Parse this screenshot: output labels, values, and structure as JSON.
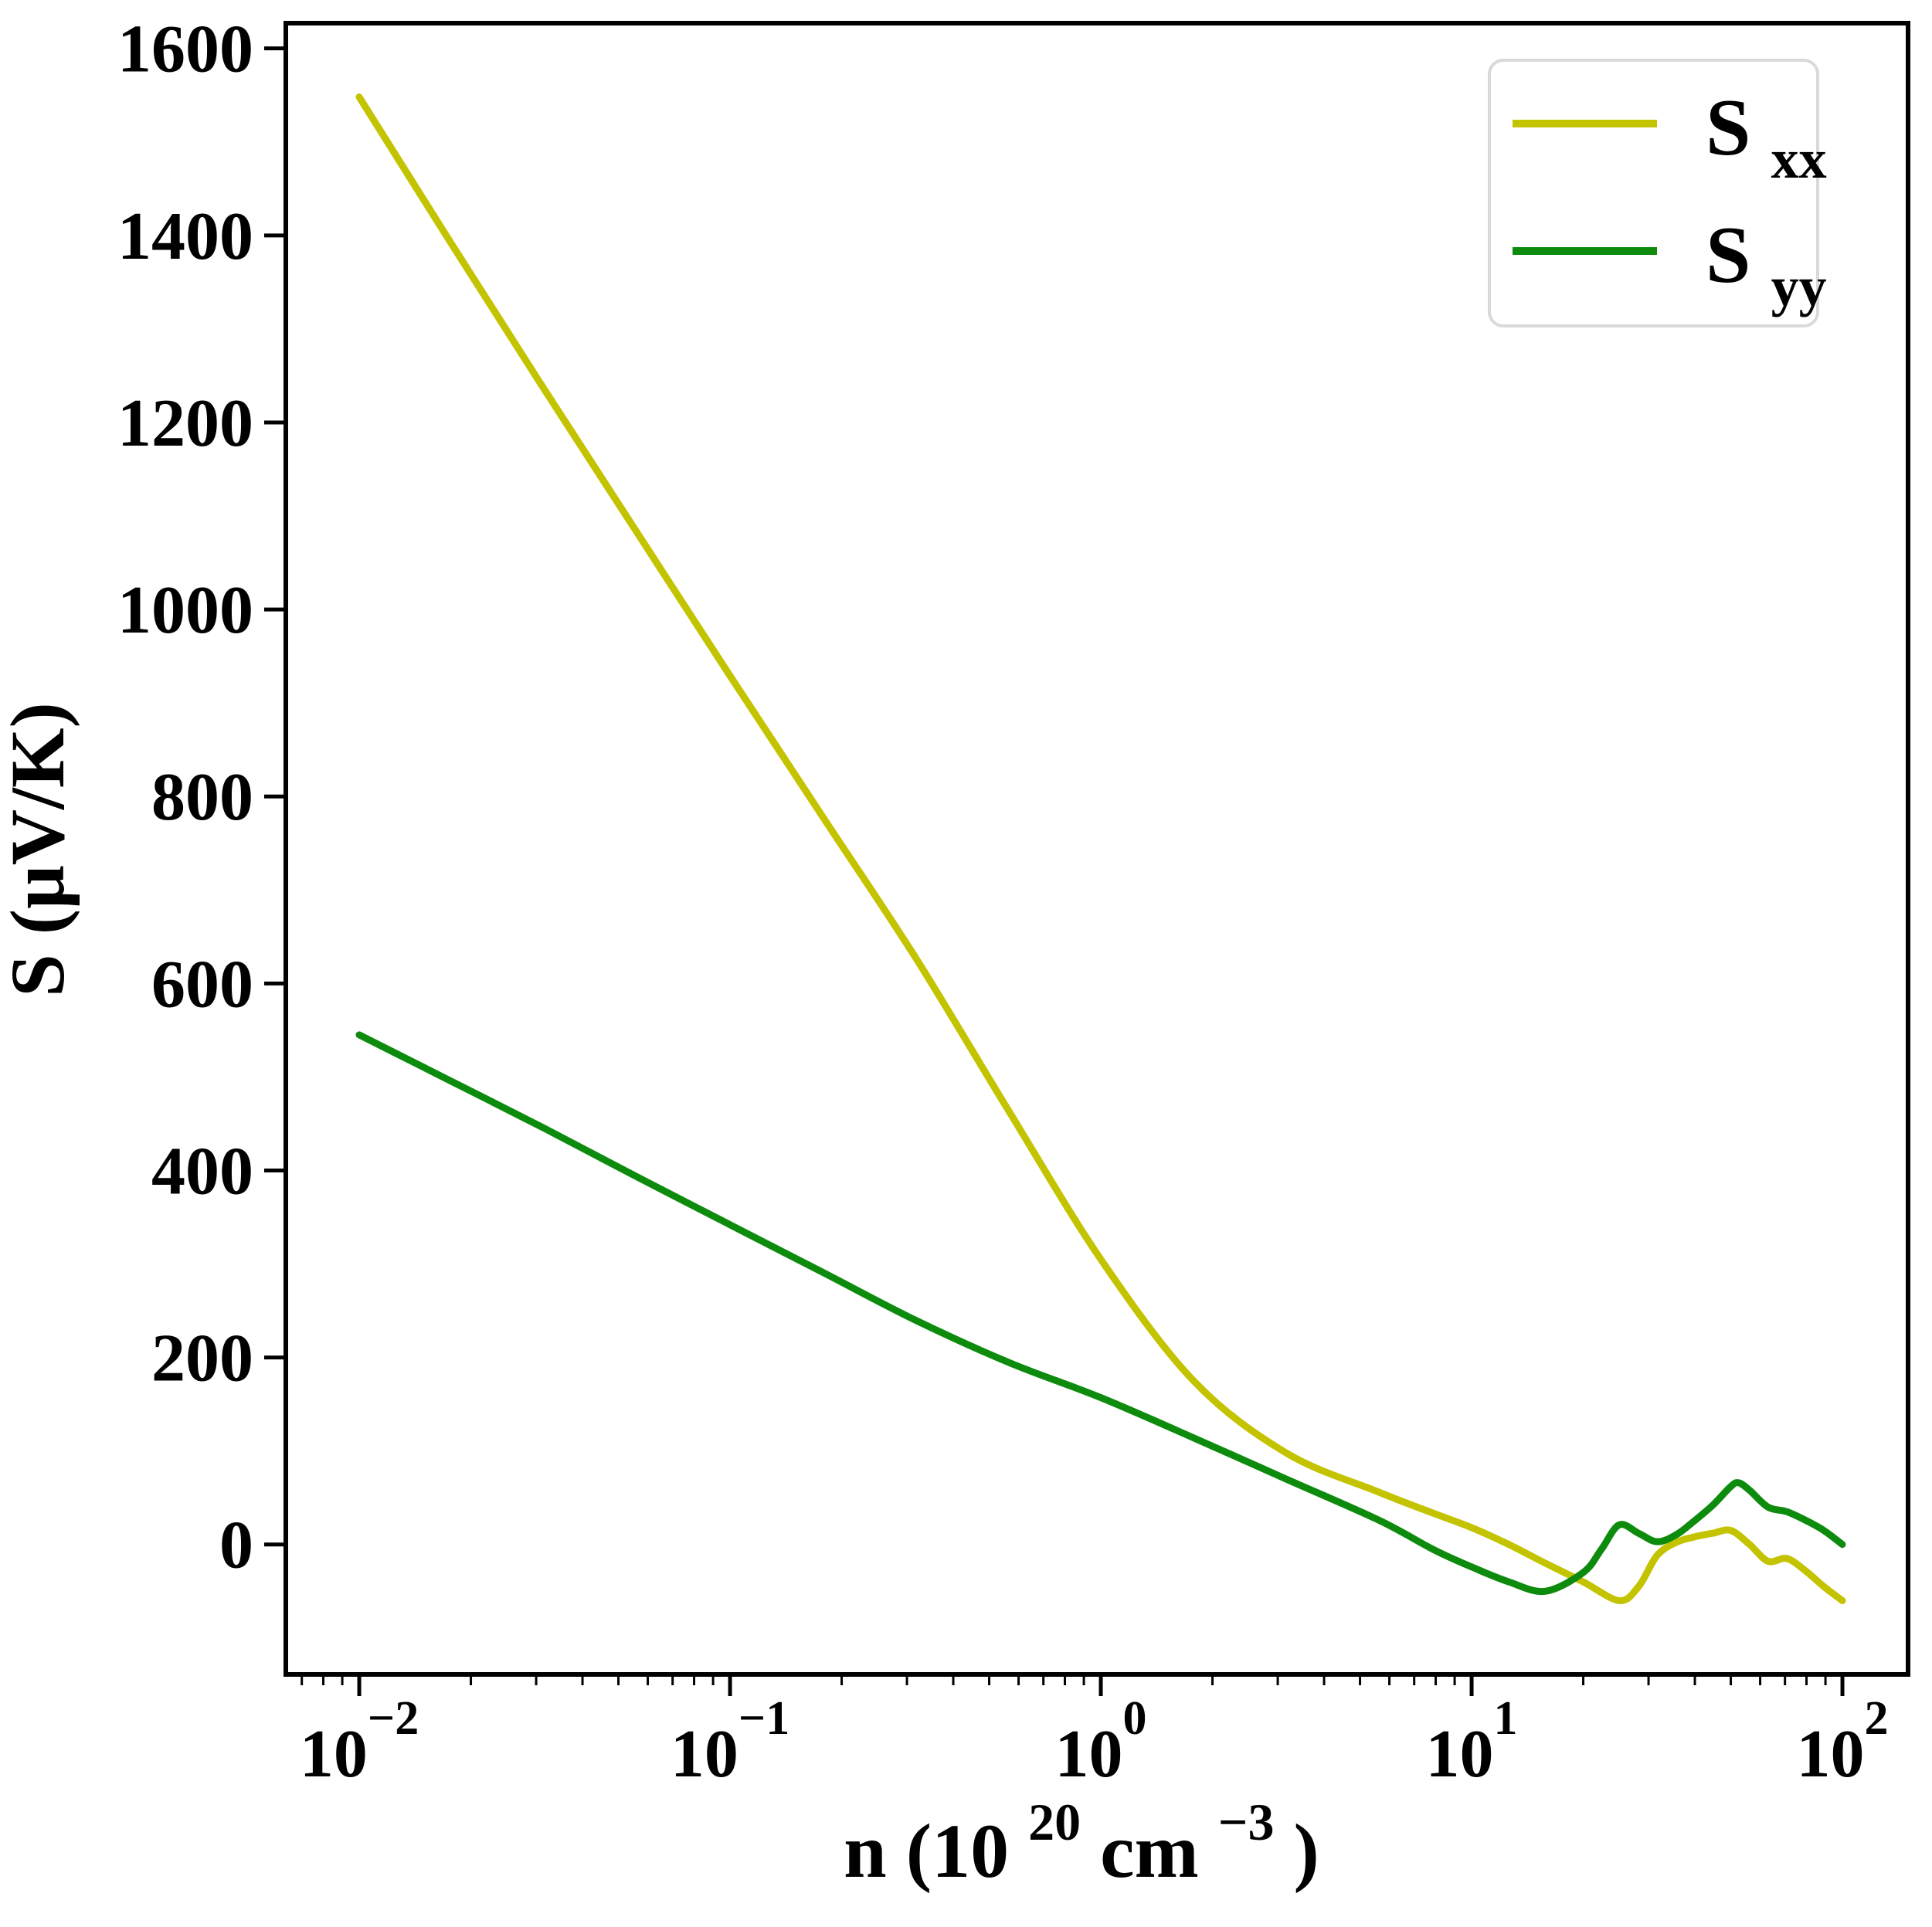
{
  "figure": {
    "background": "#ffffff"
  },
  "axes": {
    "ylabel": "S (μV/K)",
    "xlabel_parts": {
      "pre": "n (10",
      "exp1": "20",
      "mid": " cm",
      "exp2": "−3",
      "post": ")"
    },
    "y_ticks": [
      "0",
      "200",
      "400",
      "600",
      "800",
      "1000",
      "1200",
      "1400",
      "1600"
    ],
    "x_ticks": [
      {
        "base": "10",
        "exp": "−2"
      },
      {
        "base": "10",
        "exp": "−1"
      },
      {
        "base": "10",
        "exp": "0"
      },
      {
        "base": "10",
        "exp": "1"
      },
      {
        "base": "10",
        "exp": "2"
      }
    ]
  },
  "legend": {
    "items": [
      {
        "label_base": "S",
        "label_sub": "xx"
      },
      {
        "label_base": "S",
        "label_sub": "yy"
      }
    ]
  },
  "chart_data": {
    "type": "line",
    "title": "",
    "xlabel": "n (10^20 cm^-3)",
    "ylabel": "S (μV/K)",
    "x_scale": "log",
    "xlog_lim": [
      -2.198,
      2.177
    ],
    "ylim": [
      -139,
      1627
    ],
    "grid": false,
    "legend_position": "upper right",
    "x_tick_values": [
      0.01,
      0.1,
      1,
      10,
      100
    ],
    "y_tick_values": [
      0,
      200,
      400,
      600,
      800,
      1000,
      1200,
      1400,
      1600
    ],
    "series": [
      {
        "name": "Sxx",
        "color": "#c3c300",
        "x": [
          0.01,
          0.0178,
          0.0316,
          0.0562,
          0.1,
          0.178,
          0.316,
          0.562,
          1.0,
          1.78,
          3.16,
          5.62,
          7.94,
          10,
          12.6,
          15.8,
          20,
          25,
          28.2,
          31.6,
          35.5,
          39.8,
          44.7,
          50,
          56.2,
          63,
          70.8,
          79.4,
          89.1,
          100
        ],
        "y": [
          1548,
          1390,
          1235,
          1082,
          929,
          778,
          628,
          465,
          305,
          175,
          98,
          56,
          33,
          18,
          0,
          -20,
          -40,
          -60,
          -45,
          -12,
          2,
          8,
          12,
          15,
          0,
          -18,
          -15,
          -28,
          -45,
          -60
        ]
      },
      {
        "name": "Syy",
        "color": "#0d8b0d",
        "x": [
          0.01,
          0.0178,
          0.0316,
          0.0562,
          0.1,
          0.178,
          0.316,
          0.562,
          1.0,
          1.78,
          3.16,
          5.62,
          7.94,
          10,
          12.6,
          15.8,
          20,
          22.4,
          25,
          28.2,
          31.6,
          35.5,
          39.8,
          44.7,
          50,
          52.5,
          56.2,
          63,
          70.8,
          79.4,
          89.1,
          100
        ],
        "y": [
          545,
          495,
          445,
          393,
          342,
          291,
          240,
          195,
          157,
          114,
          70,
          26,
          -6,
          -24,
          -40,
          -50,
          -30,
          -5,
          21,
          12,
          3,
          10,
          25,
          42,
          62,
          66,
          58,
          40,
          35,
          26,
          15,
          0
        ]
      }
    ]
  }
}
